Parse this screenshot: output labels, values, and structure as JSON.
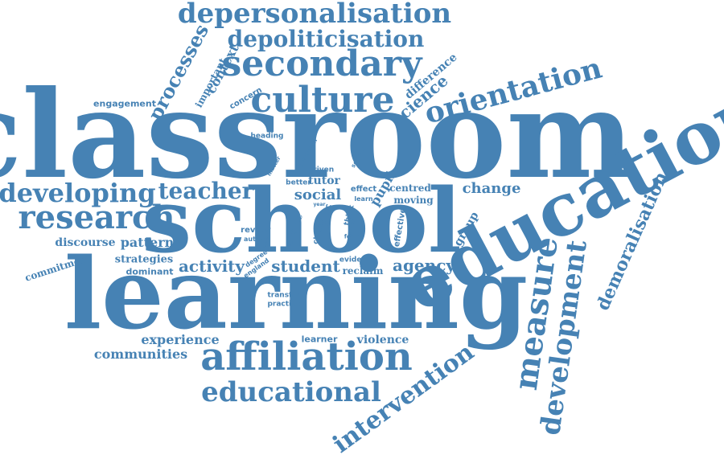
{
  "cloud": {
    "color": "#4682b4",
    "background": "#ffffff",
    "words": [
      {
        "text": "classroom"
      },
      {
        "text": "school"
      },
      {
        "text": "learning"
      },
      {
        "text": "education"
      },
      {
        "text": "affiliation"
      },
      {
        "text": "educational"
      },
      {
        "text": "secondary"
      },
      {
        "text": "culture"
      },
      {
        "text": "depersonalisation"
      },
      {
        "text": "depoliticisation"
      },
      {
        "text": "orientation"
      },
      {
        "text": "research"
      },
      {
        "text": "developing"
      },
      {
        "text": "teacher"
      },
      {
        "text": "measure"
      },
      {
        "text": "development"
      },
      {
        "text": "demoralisation"
      },
      {
        "text": "intervention"
      },
      {
        "text": "processes"
      },
      {
        "text": "science"
      },
      {
        "text": "context"
      },
      {
        "text": "important"
      },
      {
        "text": "concern"
      },
      {
        "text": "difference"
      },
      {
        "text": "engagement"
      },
      {
        "text": "heading"
      },
      {
        "text": "social"
      },
      {
        "text": "tutor"
      },
      {
        "text": "better"
      },
      {
        "text": "driven"
      },
      {
        "text": "personal"
      },
      {
        "text": "matter"
      },
      {
        "text": "section"
      },
      {
        "text": "pupil"
      },
      {
        "text": "effect"
      },
      {
        "text": "learn"
      },
      {
        "text": "centred"
      },
      {
        "text": "moving"
      },
      {
        "text": "change"
      },
      {
        "text": "group"
      },
      {
        "text": "discourse"
      },
      {
        "text": "pattern"
      },
      {
        "text": "commitment"
      },
      {
        "text": "strategies"
      },
      {
        "text": "dominant"
      },
      {
        "text": "activity"
      },
      {
        "text": "student"
      },
      {
        "text": "reclaim"
      },
      {
        "text": "agency"
      },
      {
        "text": "evident"
      },
      {
        "text": "review"
      },
      {
        "text": "author"
      },
      {
        "text": "article"
      },
      {
        "text": "chapter"
      },
      {
        "text": "proc"
      },
      {
        "text": "year"
      },
      {
        "text": "think"
      },
      {
        "text": "power"
      },
      {
        "text": "force"
      },
      {
        "text": "effective"
      },
      {
        "text": "degree"
      },
      {
        "text": "england"
      },
      {
        "text": "issue"
      },
      {
        "text": "transfer"
      },
      {
        "text": "practice"
      },
      {
        "text": "experience"
      },
      {
        "text": "communities"
      },
      {
        "text": "learner"
      },
      {
        "text": "violence"
      }
    ]
  }
}
